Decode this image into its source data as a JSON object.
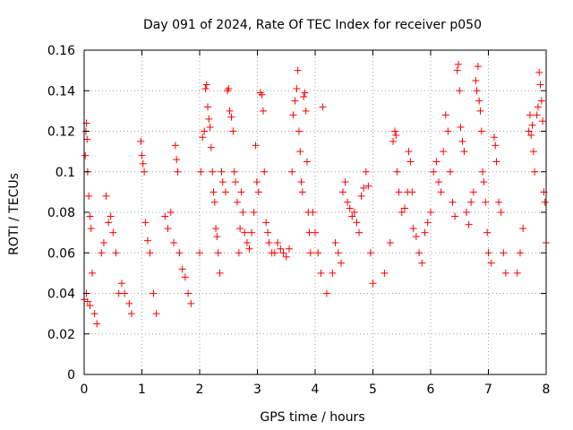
{
  "chart_data": {
    "type": "scatter",
    "title": "Day 091 of 2024, Rate Of TEC Index for receiver p050",
    "xlabel": "GPS time / hours",
    "ylabel": "ROTI / TECUs",
    "xlim": [
      0,
      8
    ],
    "ylim": [
      0,
      0.16
    ],
    "xticks": [
      0,
      1,
      2,
      3,
      4,
      5,
      6,
      7,
      8
    ],
    "xtick_labels": [
      "0",
      "1",
      "2",
      "3",
      "4",
      "5",
      "6",
      "7",
      "8"
    ],
    "yticks": [
      0,
      0.02,
      0.04,
      0.06,
      0.08,
      0.1,
      0.12,
      0.14,
      0.16
    ],
    "ytick_labels": [
      "0",
      "0.02",
      "0.04",
      "0.06",
      "0.08",
      "0.1",
      "0.12",
      "0.14",
      "0.16"
    ],
    "grid": true,
    "marker": "+",
    "color": "#ff0000",
    "series": [
      {
        "name": "ROTI",
        "points": [
          [
            0.0,
            0.037
          ],
          [
            0.02,
            0.108
          ],
          [
            0.03,
            0.12
          ],
          [
            0.04,
            0.124
          ],
          [
            0.05,
            0.116
          ],
          [
            0.06,
            0.1
          ],
          [
            0.08,
            0.088
          ],
          [
            0.1,
            0.078
          ],
          [
            0.12,
            0.072
          ],
          [
            0.04,
            0.04
          ],
          [
            0.06,
            0.036
          ],
          [
            0.1,
            0.034
          ],
          [
            0.14,
            0.05
          ],
          [
            0.18,
            0.03
          ],
          [
            0.22,
            0.025
          ],
          [
            0.3,
            0.06
          ],
          [
            0.34,
            0.065
          ],
          [
            0.38,
            0.088
          ],
          [
            0.42,
            0.075
          ],
          [
            0.46,
            0.078
          ],
          [
            0.5,
            0.07
          ],
          [
            0.55,
            0.06
          ],
          [
            0.6,
            0.04
          ],
          [
            0.65,
            0.045
          ],
          [
            0.7,
            0.04
          ],
          [
            0.78,
            0.035
          ],
          [
            0.82,
            0.03
          ],
          [
            0.98,
            0.115
          ],
          [
            1.0,
            0.108
          ],
          [
            1.02,
            0.104
          ],
          [
            1.04,
            0.1
          ],
          [
            1.06,
            0.075
          ],
          [
            1.1,
            0.066
          ],
          [
            1.14,
            0.06
          ],
          [
            1.2,
            0.04
          ],
          [
            1.25,
            0.03
          ],
          [
            1.4,
            0.078
          ],
          [
            1.45,
            0.072
          ],
          [
            1.5,
            0.08
          ],
          [
            1.55,
            0.065
          ],
          [
            1.58,
            0.113
          ],
          [
            1.6,
            0.106
          ],
          [
            1.62,
            0.1
          ],
          [
            1.65,
            0.06
          ],
          [
            1.7,
            0.052
          ],
          [
            1.75,
            0.048
          ],
          [
            1.8,
            0.04
          ],
          [
            1.85,
            0.035
          ],
          [
            2.0,
            0.06
          ],
          [
            2.02,
            0.1
          ],
          [
            2.05,
            0.117
          ],
          [
            2.08,
            0.12
          ],
          [
            2.1,
            0.141
          ],
          [
            2.12,
            0.143
          ],
          [
            2.14,
            0.132
          ],
          [
            2.16,
            0.126
          ],
          [
            2.18,
            0.122
          ],
          [
            2.2,
            0.112
          ],
          [
            2.22,
            0.1
          ],
          [
            2.24,
            0.09
          ],
          [
            2.26,
            0.085
          ],
          [
            2.28,
            0.072
          ],
          [
            2.3,
            0.068
          ],
          [
            2.32,
            0.06
          ],
          [
            2.35,
            0.05
          ],
          [
            2.38,
            0.1
          ],
          [
            2.4,
            0.095
          ],
          [
            2.45,
            0.09
          ],
          [
            2.48,
            0.14
          ],
          [
            2.5,
            0.141
          ],
          [
            2.52,
            0.13
          ],
          [
            2.55,
            0.127
          ],
          [
            2.58,
            0.12
          ],
          [
            2.6,
            0.1
          ],
          [
            2.62,
            0.095
          ],
          [
            2.65,
            0.085
          ],
          [
            2.68,
            0.06
          ],
          [
            2.7,
            0.072
          ],
          [
            2.72,
            0.09
          ],
          [
            2.75,
            0.08
          ],
          [
            2.78,
            0.07
          ],
          [
            2.82,
            0.065
          ],
          [
            2.86,
            0.062
          ],
          [
            2.9,
            0.07
          ],
          [
            2.94,
            0.08
          ],
          [
            2.97,
            0.113
          ],
          [
            2.99,
            0.095
          ],
          [
            3.02,
            0.09
          ],
          [
            3.05,
            0.139
          ],
          [
            3.08,
            0.138
          ],
          [
            3.1,
            0.13
          ],
          [
            3.12,
            0.1
          ],
          [
            3.15,
            0.075
          ],
          [
            3.18,
            0.07
          ],
          [
            3.2,
            0.065
          ],
          [
            3.25,
            0.06
          ],
          [
            3.3,
            0.06
          ],
          [
            3.35,
            0.065
          ],
          [
            3.4,
            0.062
          ],
          [
            3.45,
            0.06
          ],
          [
            3.5,
            0.058
          ],
          [
            3.55,
            0.062
          ],
          [
            3.6,
            0.1
          ],
          [
            3.62,
            0.128
          ],
          [
            3.65,
            0.135
          ],
          [
            3.68,
            0.141
          ],
          [
            3.7,
            0.15
          ],
          [
            3.72,
            0.12
          ],
          [
            3.74,
            0.11
          ],
          [
            3.76,
            0.095
          ],
          [
            3.78,
            0.09
          ],
          [
            3.8,
            0.137
          ],
          [
            3.82,
            0.139
          ],
          [
            3.84,
            0.13
          ],
          [
            3.86,
            0.105
          ],
          [
            3.88,
            0.08
          ],
          [
            3.9,
            0.07
          ],
          [
            3.92,
            0.06
          ],
          [
            3.96,
            0.08
          ],
          [
            4.0,
            0.07
          ],
          [
            4.05,
            0.06
          ],
          [
            4.1,
            0.05
          ],
          [
            4.13,
            0.132
          ],
          [
            4.2,
            0.04
          ],
          [
            4.3,
            0.05
          ],
          [
            4.35,
            0.065
          ],
          [
            4.4,
            0.06
          ],
          [
            4.45,
            0.055
          ],
          [
            4.48,
            0.09
          ],
          [
            4.52,
            0.095
          ],
          [
            4.56,
            0.085
          ],
          [
            4.6,
            0.082
          ],
          [
            4.64,
            0.078
          ],
          [
            4.68,
            0.08
          ],
          [
            4.72,
            0.075
          ],
          [
            4.76,
            0.07
          ],
          [
            4.8,
            0.088
          ],
          [
            4.84,
            0.092
          ],
          [
            4.88,
            0.1
          ],
          [
            4.92,
            0.093
          ],
          [
            4.96,
            0.06
          ],
          [
            5.0,
            0.045
          ],
          [
            5.2,
            0.05
          ],
          [
            5.3,
            0.065
          ],
          [
            5.35,
            0.115
          ],
          [
            5.38,
            0.12
          ],
          [
            5.4,
            0.118
          ],
          [
            5.42,
            0.1
          ],
          [
            5.45,
            0.09
          ],
          [
            5.5,
            0.08
          ],
          [
            5.55,
            0.082
          ],
          [
            5.6,
            0.09
          ],
          [
            5.62,
            0.11
          ],
          [
            5.65,
            0.105
          ],
          [
            5.68,
            0.09
          ],
          [
            5.7,
            0.072
          ],
          [
            5.75,
            0.068
          ],
          [
            5.8,
            0.06
          ],
          [
            5.85,
            0.055
          ],
          [
            5.9,
            0.07
          ],
          [
            5.95,
            0.075
          ],
          [
            6.0,
            0.08
          ],
          [
            6.05,
            0.1
          ],
          [
            6.1,
            0.105
          ],
          [
            6.14,
            0.095
          ],
          [
            6.18,
            0.09
          ],
          [
            6.22,
            0.11
          ],
          [
            6.26,
            0.128
          ],
          [
            6.3,
            0.12
          ],
          [
            6.34,
            0.1
          ],
          [
            6.38,
            0.085
          ],
          [
            6.42,
            0.078
          ],
          [
            6.46,
            0.15
          ],
          [
            6.48,
            0.153
          ],
          [
            6.5,
            0.14
          ],
          [
            6.52,
            0.122
          ],
          [
            6.55,
            0.115
          ],
          [
            6.58,
            0.11
          ],
          [
            6.62,
            0.08
          ],
          [
            6.66,
            0.074
          ],
          [
            6.7,
            0.085
          ],
          [
            6.74,
            0.09
          ],
          [
            6.78,
            0.145
          ],
          [
            6.8,
            0.14
          ],
          [
            6.82,
            0.152
          ],
          [
            6.84,
            0.135
          ],
          [
            6.86,
            0.13
          ],
          [
            6.88,
            0.12
          ],
          [
            6.9,
            0.1
          ],
          [
            6.92,
            0.095
          ],
          [
            6.95,
            0.085
          ],
          [
            6.98,
            0.07
          ],
          [
            7.0,
            0.06
          ],
          [
            7.05,
            0.055
          ],
          [
            7.1,
            0.117
          ],
          [
            7.12,
            0.113
          ],
          [
            7.14,
            0.105
          ],
          [
            7.18,
            0.085
          ],
          [
            7.22,
            0.08
          ],
          [
            7.26,
            0.06
          ],
          [
            7.3,
            0.05
          ],
          [
            7.5,
            0.05
          ],
          [
            7.55,
            0.06
          ],
          [
            7.6,
            0.072
          ],
          [
            7.7,
            0.12
          ],
          [
            7.72,
            0.128
          ],
          [
            7.74,
            0.118
          ],
          [
            7.76,
            0.123
          ],
          [
            7.78,
            0.11
          ],
          [
            7.8,
            0.1
          ],
          [
            7.84,
            0.128
          ],
          [
            7.86,
            0.132
          ],
          [
            7.88,
            0.149
          ],
          [
            7.9,
            0.143
          ],
          [
            7.92,
            0.135
          ],
          [
            7.94,
            0.125
          ],
          [
            7.96,
            0.09
          ],
          [
            7.98,
            0.085
          ],
          [
            8.0,
            0.065
          ]
        ]
      }
    ]
  }
}
